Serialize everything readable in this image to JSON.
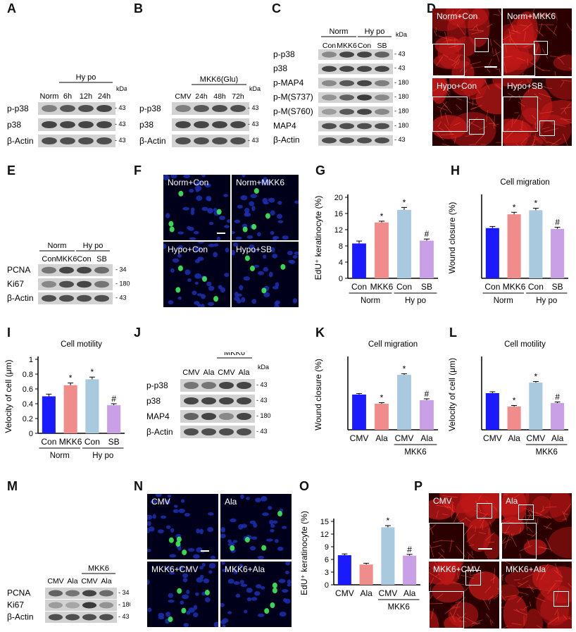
{
  "panels": {
    "A": {
      "letter": "A",
      "group": "Hy po",
      "cols": [
        "Norm",
        "6h",
        "12h",
        "24h"
      ],
      "kda_label": "kDa",
      "rows": [
        {
          "label": "p-p38",
          "kda": "43",
          "bands": [
            0.55,
            0.75,
            0.8,
            0.85
          ]
        },
        {
          "label": "p38",
          "kda": "43",
          "bands": [
            0.85,
            0.85,
            0.85,
            0.85
          ]
        },
        {
          "label": "β-Actin",
          "kda": "43",
          "bands": [
            0.8,
            0.8,
            0.8,
            0.8
          ]
        }
      ]
    },
    "B": {
      "letter": "B",
      "group": "MKK6(Glu)",
      "cols": [
        "CMV",
        "24h",
        "48h",
        "72h"
      ],
      "kda_label": "kDa",
      "rows": [
        {
          "label": "p-p38",
          "kda": "43",
          "bands": [
            0.55,
            0.75,
            0.8,
            0.8
          ]
        },
        {
          "label": "p38",
          "kda": "43",
          "bands": [
            0.85,
            0.85,
            0.85,
            0.85
          ]
        },
        {
          "label": "β-Actin",
          "kda": "43",
          "bands": [
            0.8,
            0.8,
            0.8,
            0.8
          ]
        }
      ]
    },
    "C": {
      "letter": "C",
      "groups": [
        "Norm",
        "Hy po"
      ],
      "cols": [
        "Con",
        "MKK6",
        "Con",
        "SB"
      ],
      "kda_label": "kDa",
      "rows": [
        {
          "label": "p-p38",
          "kda": "43",
          "bands": [
            0.5,
            0.85,
            0.85,
            0.7
          ]
        },
        {
          "label": "p38",
          "kda": "43",
          "bands": [
            0.85,
            0.85,
            0.85,
            0.85
          ]
        },
        {
          "label": "p-MAP4",
          "kda": "180",
          "bands": [
            0.5,
            0.75,
            0.85,
            0.55
          ]
        },
        {
          "label": "p-M(S737)",
          "kda": "180",
          "bands": [
            0.45,
            0.7,
            0.9,
            0.5
          ]
        },
        {
          "label": "p-M(S760)",
          "kda": "180",
          "bands": [
            0.4,
            0.75,
            0.85,
            0.5
          ]
        },
        {
          "label": "MAP4",
          "kda": "180",
          "bands": [
            0.8,
            0.8,
            0.8,
            0.8
          ]
        },
        {
          "label": "β-Actin",
          "kda": "43",
          "bands": [
            0.8,
            0.8,
            0.8,
            0.8
          ]
        }
      ]
    },
    "D": {
      "letter": "D",
      "tiles": [
        "Norm+Con",
        "Norm+MKK6",
        "Hypo+Con",
        "Hypo+SB"
      ]
    },
    "E": {
      "letter": "E",
      "groups": [
        "Norm",
        "Hy po"
      ],
      "cols": [
        "Con",
        "MKK6",
        "Con",
        "SB"
      ],
      "rows": [
        {
          "label": "PCNA",
          "kda": "34",
          "bands": [
            0.6,
            0.85,
            0.85,
            0.65
          ]
        },
        {
          "label": "Ki67",
          "kda": "180",
          "bands": [
            0.5,
            0.8,
            0.85,
            0.6
          ]
        },
        {
          "label": "β-Actin",
          "kda": "43",
          "bands": [
            0.8,
            0.8,
            0.8,
            0.8
          ]
        }
      ]
    },
    "F": {
      "letter": "F",
      "tiles": [
        "Norm+Con",
        "Norm+MKK6",
        "Hypo+Con",
        "Hypo+SB"
      ]
    },
    "G": {
      "letter": "G"
    },
    "H": {
      "letter": "H"
    },
    "I": {
      "letter": "I"
    },
    "J": {
      "letter": "J",
      "group": "MKK6",
      "cols": [
        "CMV",
        "Ala",
        "CMV",
        "Ala"
      ],
      "kda_label": "kDa",
      "rows": [
        {
          "label": "p-p38",
          "kda": "43",
          "bands": [
            0.6,
            0.6,
            0.85,
            0.85
          ]
        },
        {
          "label": "p38",
          "kda": "43",
          "bands": [
            0.85,
            0.85,
            0.85,
            0.85
          ]
        },
        {
          "label": "MAP4",
          "kda": "180",
          "bands": [
            0.7,
            0.85,
            0.5,
            0.85
          ]
        },
        {
          "label": "β-Actin",
          "kda": "43",
          "bands": [
            0.8,
            0.8,
            0.8,
            0.8
          ]
        }
      ]
    },
    "K": {
      "letter": "K"
    },
    "L": {
      "letter": "L"
    },
    "M": {
      "letter": "M",
      "group": "MKK6",
      "cols": [
        "CMV",
        "Ala",
        "CMV",
        "Ala"
      ],
      "rows": [
        {
          "label": "PCNA",
          "kda": "34",
          "bands": [
            0.7,
            0.6,
            0.85,
            0.65
          ]
        },
        {
          "label": "Ki67",
          "kda": "180",
          "bands": [
            0.4,
            0.35,
            0.9,
            0.45
          ]
        },
        {
          "label": "β-Actin",
          "kda": "43",
          "bands": [
            0.8,
            0.8,
            0.8,
            0.8
          ]
        }
      ]
    },
    "N": {
      "letter": "N",
      "tiles": [
        "CMV",
        "Ala",
        "MKK6+CMV",
        "MKK6+Ala"
      ]
    },
    "O": {
      "letter": "O"
    },
    "P": {
      "letter": "P",
      "tiles": [
        "CMV",
        "Ala",
        "MKK6+CMV",
        "MKK6+Ala"
      ]
    }
  },
  "chart_data": [
    {
      "id": "G",
      "type": "bar",
      "title": "",
      "ylabel": "EdU⁺ keratinocyte (%)",
      "categories": [
        "Con",
        "MKK6",
        "Con",
        "SB"
      ],
      "values": [
        8.6,
        13.8,
        16.9,
        9.3
      ],
      "errors": [
        0.6,
        0.3,
        0.6,
        0.4
      ],
      "marks": [
        "",
        "*",
        "*",
        "#"
      ],
      "ylim": [
        0,
        20
      ],
      "ticks": [
        0,
        4,
        8,
        12,
        16,
        20
      ],
      "groups": [
        {
          "label": "Norm",
          "span": [
            0,
            1
          ]
        },
        {
          "label": "Hy po",
          "span": [
            2,
            3
          ]
        }
      ],
      "colors": [
        "#1a1aff",
        "#f08c8c",
        "#a9c9df",
        "#c9a0e6"
      ]
    },
    {
      "id": "H",
      "type": "bar",
      "title": "Cell migration",
      "ylabel": "Wound closure (%)",
      "categories": [
        "Con",
        "MKK6",
        "Con",
        "SB"
      ],
      "values": [
        62,
        79,
        84,
        61
      ],
      "errors": [
        2,
        2.5,
        2.5,
        2
      ],
      "marks": [
        "",
        "*",
        "*",
        "#"
      ],
      "ylim": [
        0,
        100
      ],
      "ticks": [],
      "groups": [
        {
          "label": "Norm",
          "span": [
            0,
            1
          ]
        },
        {
          "label": "Hy po",
          "span": [
            2,
            3
          ]
        }
      ],
      "colors": [
        "#1a1aff",
        "#f08c8c",
        "#a9c9df",
        "#c9a0e6"
      ]
    },
    {
      "id": "I",
      "type": "bar",
      "title": "Cell motility",
      "ylabel": "Velocity of cell (μm)",
      "categories": [
        "Con",
        "MKK6",
        "Con",
        "SB"
      ],
      "values": [
        0.5,
        0.65,
        0.73,
        0.38
      ],
      "errors": [
        0.03,
        0.03,
        0.03,
        0.02
      ],
      "marks": [
        "",
        "*",
        "*",
        "#"
      ],
      "ylim": [
        0,
        1.0
      ],
      "ticks": [
        0.0,
        0.2,
        0.4,
        0.6,
        0.8,
        1.0
      ],
      "groups": [
        {
          "label": "Norm",
          "span": [
            0,
            1
          ]
        },
        {
          "label": "Hy po",
          "span": [
            2,
            3
          ]
        }
      ],
      "colors": [
        "#1a1aff",
        "#f08c8c",
        "#a9c9df",
        "#c9a0e6"
      ]
    },
    {
      "id": "K",
      "type": "bar",
      "title": "Cell migration",
      "ylabel": "Wound closure (%)",
      "categories": [
        "CMV",
        "Ala",
        "CMV",
        "Ala"
      ],
      "values": [
        50,
        37,
        78,
        42
      ],
      "errors": [
        1.5,
        1.5,
        1.5,
        2
      ],
      "marks": [
        "",
        "*",
        "*",
        "#"
      ],
      "ylim": [
        0,
        100
      ],
      "ticks": [],
      "groups": [
        {
          "label": "MKK6",
          "span": [
            2,
            3
          ]
        }
      ],
      "colors": [
        "#1a1aff",
        "#f08c8c",
        "#a9c9df",
        "#c9a0e6"
      ]
    },
    {
      "id": "L",
      "type": "bar",
      "title": "Cell motility",
      "ylabel": "Velocity of cell (μm)",
      "categories": [
        "CMV",
        "Ala",
        "CMV",
        "Ala"
      ],
      "values": [
        0.52,
        0.33,
        0.67,
        0.38
      ],
      "errors": [
        0.02,
        0.015,
        0.015,
        0.015
      ],
      "marks": [
        "",
        "*",
        "*",
        "#"
      ],
      "ylim": [
        0,
        1.0
      ],
      "ticks": [],
      "groups": [
        {
          "label": "MKK6",
          "span": [
            2,
            3
          ]
        }
      ],
      "colors": [
        "#1a1aff",
        "#f08c8c",
        "#a9c9df",
        "#c9a0e6"
      ]
    },
    {
      "id": "O",
      "type": "bar",
      "title": "",
      "ylabel": "EdU⁺ keratinocyte (%)",
      "categories": [
        "CMV",
        "Ala",
        "CMV",
        "Ala"
      ],
      "values": [
        7.0,
        4.8,
        13.6,
        6.9
      ],
      "errors": [
        0.3,
        0.3,
        0.4,
        0.3
      ],
      "marks": [
        "",
        "",
        "*",
        "#"
      ],
      "ylim": [
        0,
        15
      ],
      "ticks": [
        0,
        3,
        6,
        9,
        12,
        15
      ],
      "groups": [
        {
          "label": "MKK6",
          "span": [
            2,
            3
          ]
        }
      ],
      "colors": [
        "#1a1aff",
        "#f08c8c",
        "#a9c9df",
        "#c9a0e6"
      ]
    }
  ]
}
